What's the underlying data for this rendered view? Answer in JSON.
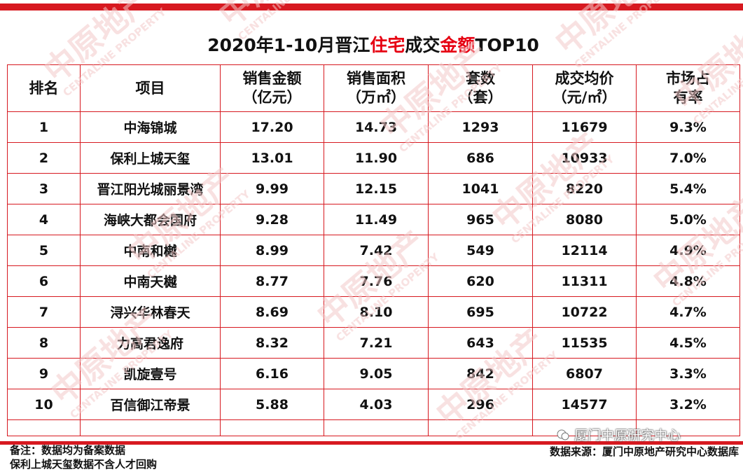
{
  "title": {
    "part1": "2020年1-10月晋江",
    "part2": "住宅",
    "part3": "成交",
    "part4": "金额",
    "part5": "TOP10"
  },
  "headers": {
    "rank": "排名",
    "project": "项目",
    "sales_amount_1": "销售金额",
    "sales_amount_2": "（亿元）",
    "sales_area_1": "销售面积",
    "sales_area_2": "（万㎡）",
    "units_1": "套数",
    "units_2": "（套）",
    "avg_price_1": "成交均价",
    "avg_price_2": "（元/㎡）",
    "share_1": "市场占",
    "share_2": "有率"
  },
  "rows": [
    {
      "rank": "1",
      "project": "中海锦城",
      "amount": "17.20",
      "area": "14.73",
      "units": "1293",
      "price": "11679",
      "share": "9.3%"
    },
    {
      "rank": "2",
      "project": "保利上城天玺",
      "amount": "13.01",
      "area": "11.90",
      "units": "686",
      "price": "10933",
      "share": "7.0%"
    },
    {
      "rank": "3",
      "project": "晋江阳光城丽景湾",
      "amount": "9.99",
      "area": "12.15",
      "units": "1041",
      "price": "8220",
      "share": "5.4%"
    },
    {
      "rank": "4",
      "project": "海峡大都会国府",
      "amount": "9.28",
      "area": "11.49",
      "units": "965",
      "price": "8080",
      "share": "5.0%"
    },
    {
      "rank": "5",
      "project": "中南和樾",
      "amount": "8.99",
      "area": "7.42",
      "units": "549",
      "price": "12114",
      "share": "4.9%"
    },
    {
      "rank": "6",
      "project": "中南天樾",
      "amount": "8.77",
      "area": "7.76",
      "units": "620",
      "price": "11311",
      "share": "4.8%"
    },
    {
      "rank": "7",
      "project": "浔兴华林春天",
      "amount": "8.69",
      "area": "8.10",
      "units": "695",
      "price": "10722",
      "share": "4.7%"
    },
    {
      "rank": "8",
      "project": "力高君逸府",
      "amount": "8.32",
      "area": "7.21",
      "units": "643",
      "price": "11535",
      "share": "4.5%"
    },
    {
      "rank": "9",
      "project": "凯旋壹号",
      "amount": "6.16",
      "area": "9.05",
      "units": "842",
      "price": "6807",
      "share": "3.3%"
    },
    {
      "rank": "10",
      "project": "百信御江帝景",
      "amount": "5.88",
      "area": "4.03",
      "units": "296",
      "price": "14577",
      "share": "3.2%"
    }
  ],
  "notes": {
    "line1": "备注：数据均为备案数据",
    "line2": "保利上城天玺数据不含人才回购"
  },
  "source": "数据来源：厦门中原地产研究中心数据库",
  "wechat_account": "厦门中原研究中心",
  "watermark": {
    "cn": "中原地产",
    "en": "CENTALINE PROPERTY",
    "color": "#f3c8c8"
  }
}
